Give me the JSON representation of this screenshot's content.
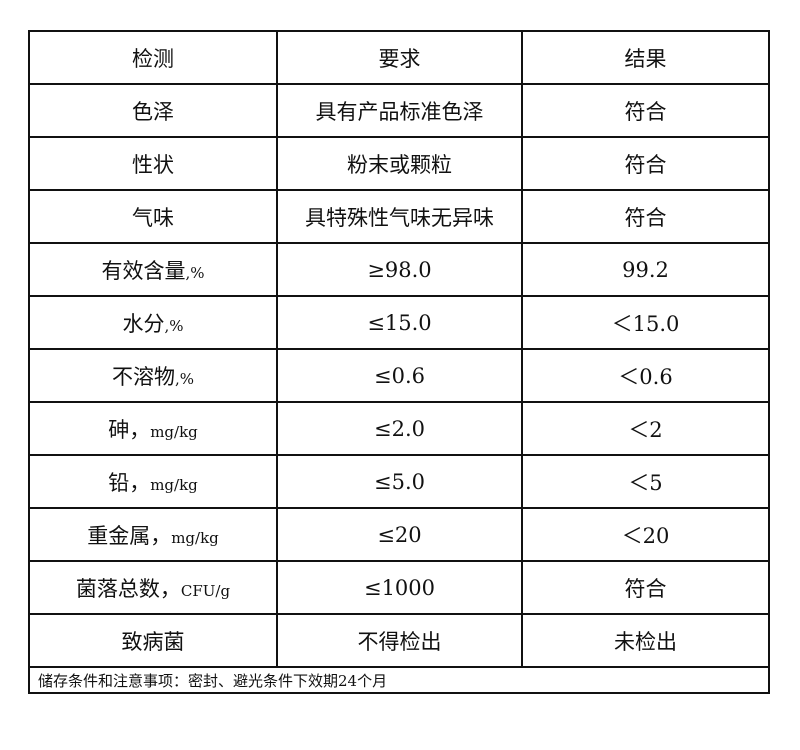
{
  "header": [
    "检测",
    "要求",
    "结果"
  ],
  "rows": [
    {
      "item": "色泽",
      "unit": "",
      "requirement": "具有产品标准色泽",
      "result": "符合"
    },
    {
      "item": "性状",
      "unit": "",
      "requirement": "粉末或颗粒",
      "result": "符合"
    },
    {
      "item": "气味",
      "unit": "",
      "requirement": "具特殊性气味无异味",
      "result": "符合"
    },
    {
      "item": "有效含量",
      "unit": ",%",
      "requirement": "≥98.0",
      "result": "99.2"
    },
    {
      "item": "水分",
      "unit": ",%",
      "requirement": "≤15.0",
      "result": "＜15.0"
    },
    {
      "item": "不溶物",
      "unit": ",%",
      "requirement": "≤0.6",
      "result": "＜0.6"
    },
    {
      "item": "砷，",
      "unit": "mg/kg",
      "requirement": "≤2.0",
      "result": "＜2"
    },
    {
      "item": "铅，",
      "unit": "mg/kg",
      "requirement": "≤5.0",
      "result": "＜5"
    },
    {
      "item": "重金属，",
      "unit": "mg/kg",
      "requirement": "≤20",
      "result": "＜20"
    },
    {
      "item": "菌落总数，",
      "unit": "CFU/g",
      "requirement": "≤1000",
      "result": "符合"
    },
    {
      "item": "致病菌",
      "unit": "",
      "requirement": "不得检出",
      "result": "未检出"
    }
  ],
  "footer": "储存条件和注意事项：密封、避光条件下效期24个月"
}
